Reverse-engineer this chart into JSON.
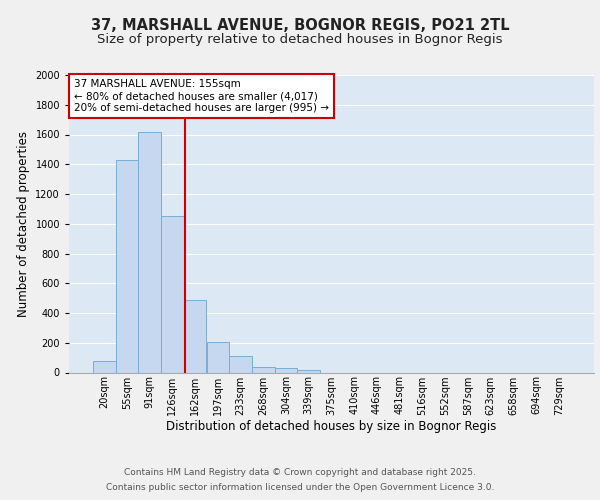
{
  "title1": "37, MARSHALL AVENUE, BOGNOR REGIS, PO21 2TL",
  "title2": "Size of property relative to detached houses in Bognor Regis",
  "xlabel": "Distribution of detached houses by size in Bognor Regis",
  "ylabel": "Number of detached properties",
  "categories": [
    "20sqm",
    "55sqm",
    "91sqm",
    "126sqm",
    "162sqm",
    "197sqm",
    "233sqm",
    "268sqm",
    "304sqm",
    "339sqm",
    "375sqm",
    "410sqm",
    "446sqm",
    "481sqm",
    "516sqm",
    "552sqm",
    "587sqm",
    "623sqm",
    "658sqm",
    "694sqm",
    "729sqm"
  ],
  "values": [
    80,
    1430,
    1620,
    1050,
    490,
    205,
    110,
    40,
    30,
    20,
    0,
    0,
    0,
    0,
    0,
    0,
    0,
    0,
    0,
    0,
    0
  ],
  "bar_color": "#c5d8f0",
  "bar_edge_color": "#7aadd4",
  "background_color": "#dde8f5",
  "grid_color": "#ffffff",
  "red_line_x": 3.55,
  "annotation_title": "37 MARSHALL AVENUE: 155sqm",
  "annotation_line1": "← 80% of detached houses are smaller (4,017)",
  "annotation_line2": "20% of semi-detached houses are larger (995) →",
  "annotation_box_color": "#ffffff",
  "annotation_border_color": "#cc0000",
  "red_line_color": "#cc0000",
  "ylim": [
    0,
    2000
  ],
  "yticks": [
    0,
    200,
    400,
    600,
    800,
    1000,
    1200,
    1400,
    1600,
    1800,
    2000
  ],
  "footer1": "Contains HM Land Registry data © Crown copyright and database right 2025.",
  "footer2": "Contains public sector information licensed under the Open Government Licence 3.0.",
  "title_fontsize": 10.5,
  "subtitle_fontsize": 9.5,
  "tick_fontsize": 7,
  "label_fontsize": 8.5,
  "footer_fontsize": 6.5,
  "fig_bg": "#f0f0f0"
}
